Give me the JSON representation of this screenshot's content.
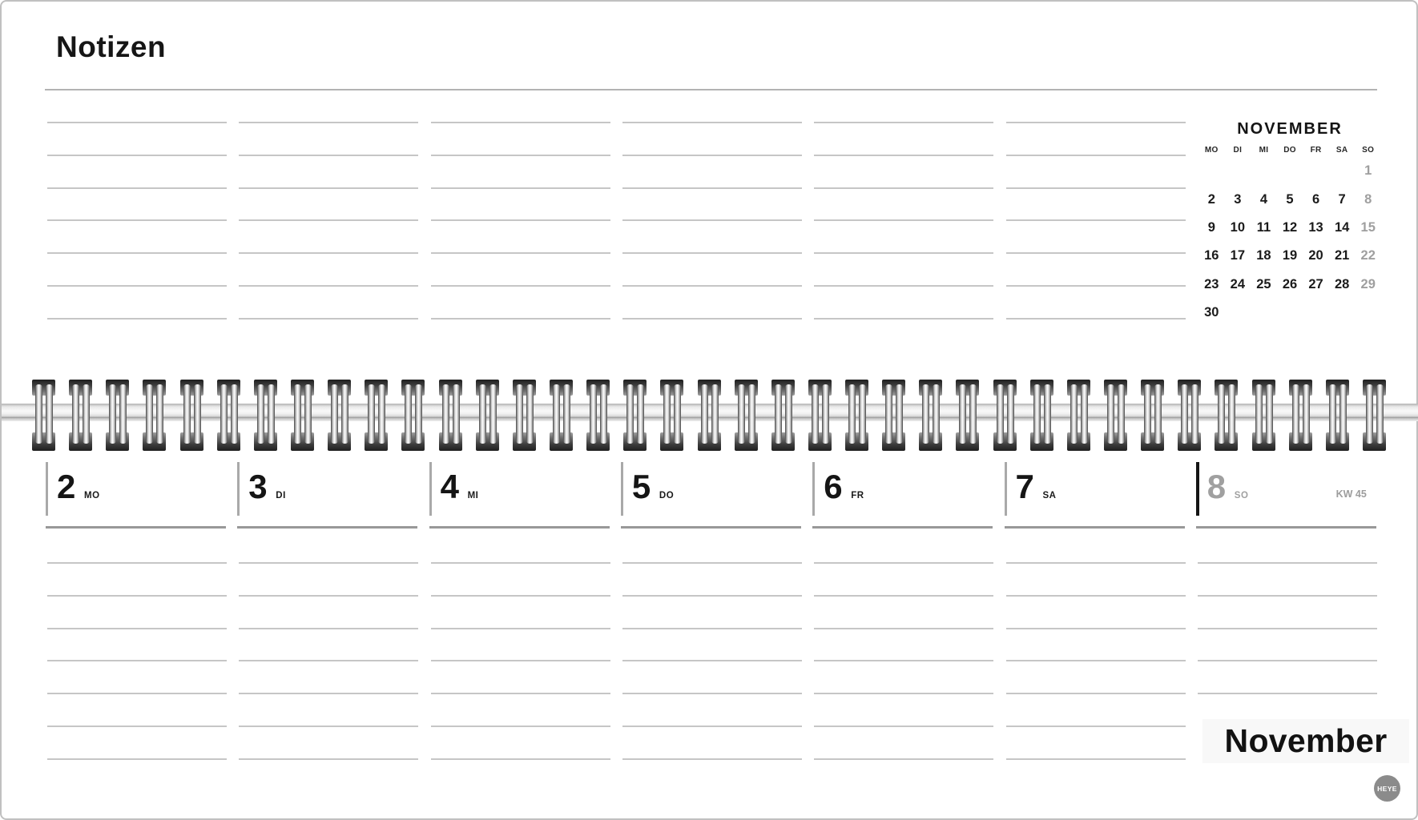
{
  "notes": {
    "title": "Notizen"
  },
  "mini_calendar": {
    "month_label": "NOVEMBER",
    "weekdays": [
      "MO",
      "DI",
      "MI",
      "DO",
      "FR",
      "SA",
      "SO"
    ],
    "rows": [
      [
        "",
        "",
        "",
        "",
        "",
        "",
        "1"
      ],
      [
        "2",
        "3",
        "4",
        "5",
        "6",
        "7",
        "8"
      ],
      [
        "9",
        "10",
        "11",
        "12",
        "13",
        "14",
        "15"
      ],
      [
        "16",
        "17",
        "18",
        "19",
        "20",
        "21",
        "22"
      ],
      [
        "23",
        "24",
        "25",
        "26",
        "27",
        "28",
        "29"
      ],
      [
        "30",
        "",
        "",
        "",
        "",
        "",
        ""
      ]
    ],
    "muted_weekday": "SO"
  },
  "week": {
    "kw_label": "KW 45",
    "days": [
      {
        "num": "2",
        "weekday": "MO",
        "muted": false
      },
      {
        "num": "3",
        "weekday": "DI",
        "muted": false
      },
      {
        "num": "4",
        "weekday": "MI",
        "muted": false
      },
      {
        "num": "5",
        "weekday": "DO",
        "muted": false
      },
      {
        "num": "6",
        "weekday": "FR",
        "muted": false
      },
      {
        "num": "7",
        "weekday": "SA",
        "muted": false
      },
      {
        "num": "8",
        "weekday": "SO",
        "muted": true
      }
    ]
  },
  "footer": {
    "month_label": "November",
    "logo_text": "HEYE"
  },
  "colors": {
    "text": "#1a1a1a",
    "muted_text": "#9e9e9e",
    "note_line": "#c6c6c6",
    "header_rule": "#989898",
    "logo_bg": "#8b8b8b"
  }
}
